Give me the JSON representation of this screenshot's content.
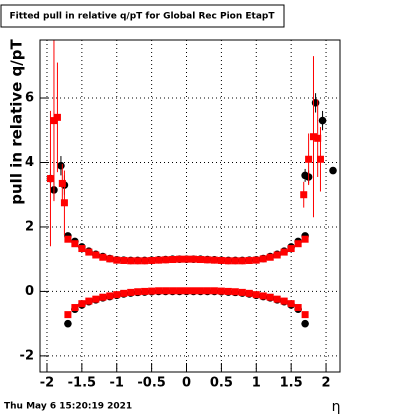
{
  "chart_data": {
    "type": "scatter",
    "title": "Fitted pull in relative q/pT for Global Rec Pion EtapT",
    "y_label": "pull in relative q/pT",
    "x_label": "η",
    "footer": "Thu May  6 15:20:19 2021",
    "xlim": [
      -2.1,
      2.2
    ],
    "ylim": [
      -2.5,
      7.8
    ],
    "xticks": [
      -2,
      -1.5,
      -1,
      -0.5,
      0,
      0.5,
      1,
      1.5,
      2
    ],
    "yticks": [
      -2,
      0,
      2,
      4,
      6
    ],
    "grid": true,
    "series": [
      {
        "color": "#000000",
        "marker": "circle",
        "x": [
          -1.7,
          -1.6,
          -1.5,
          -1.4,
          -1.3,
          -1.2,
          -1.1,
          -1.0,
          -0.9,
          -0.8,
          -0.7,
          -0.6,
          -0.5,
          -0.4,
          -0.3,
          -0.2,
          -0.1,
          0,
          0.1,
          0.2,
          0.3,
          0.4,
          0.5,
          0.6,
          0.7,
          0.8,
          0.9,
          1.0,
          1.1,
          1.2,
          1.3,
          1.4,
          1.5,
          1.6,
          1.7
        ],
        "values": [
          1.72,
          1.55,
          1.38,
          1.25,
          1.15,
          1.08,
          1.02,
          0.98,
          0.97,
          0.96,
          0.96,
          0.96,
          0.97,
          0.98,
          0.99,
          1.0,
          1.0,
          1.0,
          1.0,
          1.0,
          0.99,
          0.98,
          0.97,
          0.96,
          0.96,
          0.96,
          0.97,
          0.98,
          1.02,
          1.08,
          1.15,
          1.25,
          1.38,
          1.55,
          1.72
        ]
      },
      {
        "color": "#000000",
        "marker": "circle",
        "x": [
          -1.7,
          -1.6,
          -1.5,
          -1.4,
          -1.3,
          -1.2,
          -1.1,
          -1.0,
          -0.9,
          -0.8,
          -0.7,
          -0.6,
          -0.5,
          -0.4,
          -0.3,
          -0.2,
          -0.1,
          0,
          0.1,
          0.2,
          0.3,
          0.4,
          0.5,
          0.6,
          0.7,
          0.8,
          0.9,
          1.0,
          1.1,
          1.2,
          1.3,
          1.4,
          1.5,
          1.6,
          1.7
        ],
        "values": [
          -1.0,
          -0.55,
          -0.42,
          -0.32,
          -0.26,
          -0.2,
          -0.16,
          -0.12,
          -0.08,
          -0.05,
          -0.03,
          -0.02,
          -0.01,
          0,
          0,
          0,
          0,
          0,
          0,
          0,
          0,
          0,
          -0.01,
          -0.02,
          -0.03,
          -0.05,
          -0.08,
          -0.12,
          -0.16,
          -0.2,
          -0.26,
          -0.32,
          -0.42,
          -0.55,
          -1.0
        ]
      },
      {
        "color": "#000000",
        "marker": "circle",
        "x": [
          -1.95,
          -1.9,
          -1.8,
          -1.75,
          1.7,
          1.75,
          1.85,
          1.95,
          2.1
        ],
        "values": [
          3.5,
          3.15,
          3.9,
          3.3,
          3.6,
          3.55,
          5.85,
          5.3,
          3.75
        ],
        "errors": [
          0.3,
          0.3,
          0.3,
          0.3,
          0.2,
          0.2,
          0.3,
          0.3,
          0.1
        ]
      },
      {
        "color": "#ff0000",
        "marker": "square",
        "x": [
          -1.7,
          -1.6,
          -1.5,
          -1.4,
          -1.3,
          -1.2,
          -1.1,
          -1.0,
          -0.9,
          -0.8,
          -0.7,
          -0.6,
          -0.5,
          -0.4,
          -0.3,
          -0.2,
          -0.1,
          0,
          0.1,
          0.2,
          0.3,
          0.4,
          0.5,
          0.6,
          0.7,
          0.8,
          0.9,
          1.0,
          1.1,
          1.2,
          1.3,
          1.4,
          1.5,
          1.6,
          1.7
        ],
        "values": [
          1.62,
          1.48,
          1.33,
          1.22,
          1.13,
          1.06,
          1.01,
          0.97,
          0.96,
          0.95,
          0.95,
          0.95,
          0.96,
          0.97,
          0.98,
          0.99,
          1.0,
          1.0,
          1.0,
          0.99,
          0.98,
          0.97,
          0.96,
          0.95,
          0.95,
          0.95,
          0.96,
          0.97,
          1.01,
          1.06,
          1.13,
          1.22,
          1.33,
          1.48,
          1.62
        ]
      },
      {
        "color": "#ff0000",
        "marker": "square",
        "x": [
          -1.7,
          -1.6,
          -1.5,
          -1.4,
          -1.3,
          -1.2,
          -1.1,
          -1.0,
          -0.9,
          -0.8,
          -0.7,
          -0.6,
          -0.5,
          -0.4,
          -0.3,
          -0.2,
          -0.1,
          0,
          0.1,
          0.2,
          0.3,
          0.4,
          0.5,
          0.6,
          0.7,
          0.8,
          0.9,
          1.0,
          1.1,
          1.2,
          1.3,
          1.4,
          1.5,
          1.6,
          1.7
        ],
        "values": [
          -0.72,
          -0.5,
          -0.38,
          -0.3,
          -0.24,
          -0.18,
          -0.14,
          -0.1,
          -0.06,
          -0.03,
          -0.01,
          0,
          0.01,
          0.02,
          0.02,
          0.02,
          0.02,
          0.02,
          0.02,
          0.02,
          0.02,
          0.02,
          0.01,
          0,
          -0.01,
          -0.03,
          -0.06,
          -0.1,
          -0.14,
          -0.18,
          -0.24,
          -0.3,
          -0.38,
          -0.5,
          -0.72
        ]
      },
      {
        "color": "#ff0000",
        "marker": "square",
        "x": [
          -1.95,
          -1.9,
          -1.85,
          -1.78,
          -1.75,
          1.68,
          1.75,
          1.82,
          1.88,
          1.92
        ],
        "values": [
          3.5,
          5.3,
          5.4,
          3.35,
          2.75,
          3.0,
          4.1,
          4.8,
          4.75,
          4.1
        ],
        "errors": [
          2.1,
          2.5,
          1.7,
          0.6,
          1.0,
          0.4,
          0.8,
          2.5,
          1.2,
          1.0
        ]
      }
    ]
  }
}
